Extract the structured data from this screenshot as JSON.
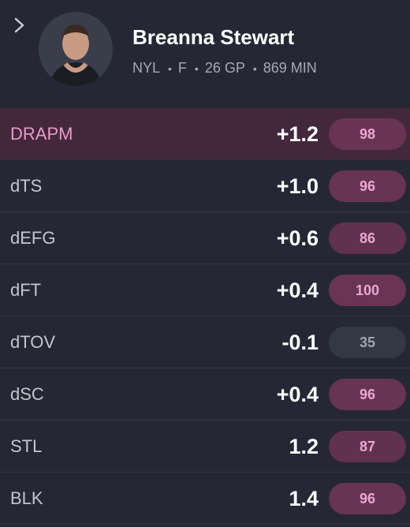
{
  "header": {
    "name": "Breanna Stewart",
    "team": "NYL",
    "position": "F",
    "games": "26 GP",
    "minutes": "869 MIN"
  },
  "rows": [
    {
      "label": "DRAPM",
      "value": "+1.2",
      "percentile": 98
    },
    {
      "label": "dTS",
      "value": "+1.0",
      "percentile": 96
    },
    {
      "label": "dEFG",
      "value": "+0.6",
      "percentile": 86
    },
    {
      "label": "dFT",
      "value": "+0.4",
      "percentile": 100
    },
    {
      "label": "dTOV",
      "value": "-0.1",
      "percentile": 35
    },
    {
      "label": "dSC",
      "value": "+0.4",
      "percentile": 96
    },
    {
      "label": "STL",
      "value": "1.2",
      "percentile": 87
    },
    {
      "label": "BLK",
      "value": "1.4",
      "percentile": 96
    }
  ]
}
